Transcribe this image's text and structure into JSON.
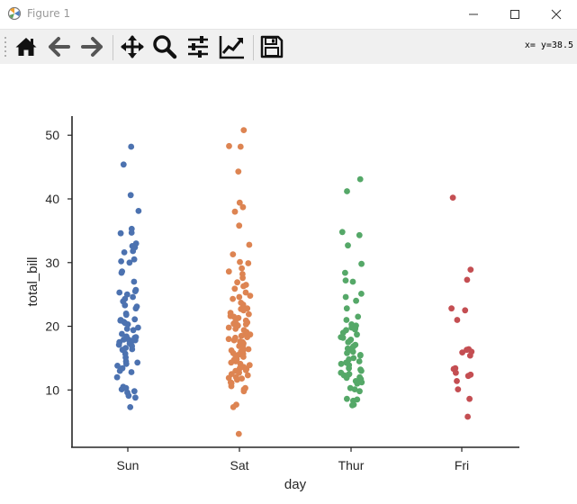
{
  "window": {
    "title": "Figure 1",
    "coords_label": "x= y=38.5"
  },
  "toolbar": {
    "tools": [
      {
        "name": "home-icon"
      },
      {
        "name": "back-icon"
      },
      {
        "name": "forward-icon"
      },
      {
        "name": "pan-icon"
      },
      {
        "name": "zoom-icon"
      },
      {
        "name": "configure-subplots-icon"
      },
      {
        "name": "edit-axis-icon"
      },
      {
        "name": "save-icon"
      }
    ]
  },
  "chart_data": {
    "type": "scatter",
    "xlabel": "day",
    "ylabel": "total_bill",
    "categories": [
      "Sun",
      "Sat",
      "Thur",
      "Fri"
    ],
    "ylim": [
      1,
      53
    ],
    "yticks": [
      10,
      20,
      30,
      40,
      50
    ],
    "grid": false,
    "colors": [
      "#4c72b0",
      "#dd8452",
      "#55a868",
      "#c44e52"
    ],
    "series": [
      {
        "category": "Sun",
        "values": [
          48.2,
          45.4,
          40.6,
          38.1,
          35.3,
          34.7,
          34.6,
          33.0,
          32.6,
          32.4,
          31.8,
          31.6,
          30.5,
          30.2,
          30.0,
          28.6,
          28.4,
          27.0,
          25.7,
          25.5,
          25.3,
          25.0,
          24.6,
          24.3,
          23.9,
          23.3,
          23.1,
          22.8,
          22.0,
          21.8,
          21.1,
          21.0,
          20.9,
          20.7,
          20.5,
          20.3,
          19.8,
          19.6,
          19.4,
          18.8,
          18.4,
          18.3,
          18.2,
          17.9,
          17.9,
          17.8,
          17.7,
          17.5,
          17.3,
          17.1,
          16.9,
          16.6,
          16.4,
          16.3,
          15.7,
          15.1,
          14.5,
          14.3,
          14.1,
          13.8,
          13.4,
          13.0,
          12.8,
          12.0,
          10.5,
          10.3,
          10.3,
          10.1,
          9.8,
          9.6,
          9.1,
          8.8,
          7.3
        ]
      },
      {
        "category": "Sat",
        "values": [
          50.8,
          48.3,
          48.2,
          44.3,
          39.4,
          38.7,
          38.0,
          35.8,
          32.8,
          31.3,
          30.1,
          29.9,
          29.1,
          28.6,
          28.2,
          27.6,
          26.9,
          26.5,
          26.3,
          25.9,
          25.3,
          24.8,
          24.6,
          24.3,
          23.7,
          23.4,
          22.8,
          22.7,
          22.5,
          22.1,
          21.9,
          21.6,
          21.5,
          21.3,
          20.9,
          20.7,
          20.6,
          20.4,
          20.3,
          20.2,
          20.1,
          19.8,
          19.6,
          19.4,
          19.1,
          18.9,
          18.7,
          18.5,
          18.3,
          18.2,
          18.0,
          17.8,
          17.6,
          17.5,
          17.3,
          17.1,
          16.9,
          16.6,
          16.4,
          16.3,
          16.2,
          16.0,
          15.8,
          15.7,
          15.5,
          15.4,
          15.2,
          15.0,
          14.8,
          14.7,
          14.5,
          14.3,
          14.1,
          13.9,
          13.6,
          13.4,
          13.3,
          13.1,
          13.0,
          12.8,
          12.7,
          12.5,
          12.3,
          12.0,
          11.9,
          11.8,
          11.6,
          11.2,
          11.1,
          11.0,
          10.6,
          10.3,
          10.1,
          9.8,
          7.7,
          7.3,
          3.1
        ]
      },
      {
        "category": "Thur",
        "values": [
          43.1,
          41.2,
          34.8,
          34.3,
          32.7,
          29.8,
          28.4,
          27.2,
          27.0,
          25.1,
          24.6,
          24.0,
          22.8,
          21.5,
          21.0,
          20.3,
          20.1,
          19.8,
          19.7,
          19.5,
          19.4,
          19.0,
          18.7,
          18.3,
          18.2,
          17.9,
          17.8,
          17.5,
          17.1,
          16.9,
          16.7,
          16.5,
          16.4,
          16.3,
          16.0,
          15.8,
          15.5,
          15.4,
          15.0,
          14.8,
          14.5,
          14.3,
          14.1,
          13.9,
          13.4,
          13.2,
          13.0,
          12.7,
          12.5,
          12.4,
          12.3,
          12.0,
          11.9,
          11.7,
          11.4,
          11.2,
          11.0,
          10.3,
          10.1,
          9.8,
          8.6,
          8.5,
          8.3,
          7.7,
          7.6
        ]
      },
      {
        "category": "Fri",
        "values": [
          40.2,
          28.9,
          27.3,
          22.8,
          22.5,
          21.0,
          16.4,
          16.3,
          16.0,
          15.9,
          15.4,
          13.4,
          13.3,
          12.7,
          12.4,
          12.2,
          11.4,
          10.1,
          8.6,
          5.8
        ]
      }
    ]
  }
}
